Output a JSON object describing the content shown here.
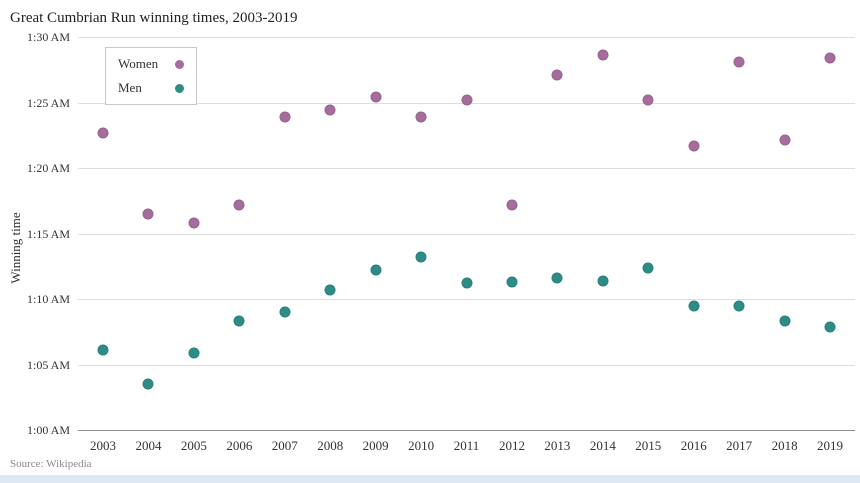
{
  "title": "Great Cumbrian Run winning times, 2003-2019",
  "source": "Source: Wikipedia",
  "chart_data": {
    "type": "scatter",
    "title": "Great Cumbrian Run winning times, 2003-2019",
    "xlabel": "",
    "ylabel": "Winning time",
    "x": [
      2003,
      2004,
      2005,
      2006,
      2007,
      2008,
      2009,
      2010,
      2011,
      2012,
      2013,
      2014,
      2015,
      2016,
      2017,
      2018,
      2019
    ],
    "y_unit": "minutes after 1:00 AM",
    "ylim_minutes": [
      0,
      30
    ],
    "y_ticks": [
      {
        "minutes": 0,
        "label": "1:00 AM"
      },
      {
        "minutes": 5,
        "label": "1:05 AM"
      },
      {
        "minutes": 10,
        "label": "1:10 AM"
      },
      {
        "minutes": 15,
        "label": "1:15 AM"
      },
      {
        "minutes": 20,
        "label": "1:20 AM"
      },
      {
        "minutes": 25,
        "label": "1:25 AM"
      },
      {
        "minutes": 30,
        "label": "1:30 AM"
      }
    ],
    "grid": "horizontal",
    "legend_position": "top-left-inside",
    "series": [
      {
        "name": "Women",
        "color": "#a56c9c",
        "values_min": [
          22.7,
          16.5,
          15.8,
          17.2,
          23.9,
          24.4,
          25.4,
          23.9,
          25.2,
          17.2,
          27.1,
          28.6,
          25.2,
          21.7,
          28.1,
          22.1,
          28.4
        ]
      },
      {
        "name": "Men",
        "color": "#2d8c86",
        "values_min": [
          6.1,
          3.5,
          5.9,
          8.3,
          9.0,
          10.7,
          12.2,
          13.2,
          11.2,
          11.3,
          11.6,
          11.4,
          12.4,
          9.5,
          9.5,
          8.3,
          7.9
        ]
      }
    ]
  }
}
